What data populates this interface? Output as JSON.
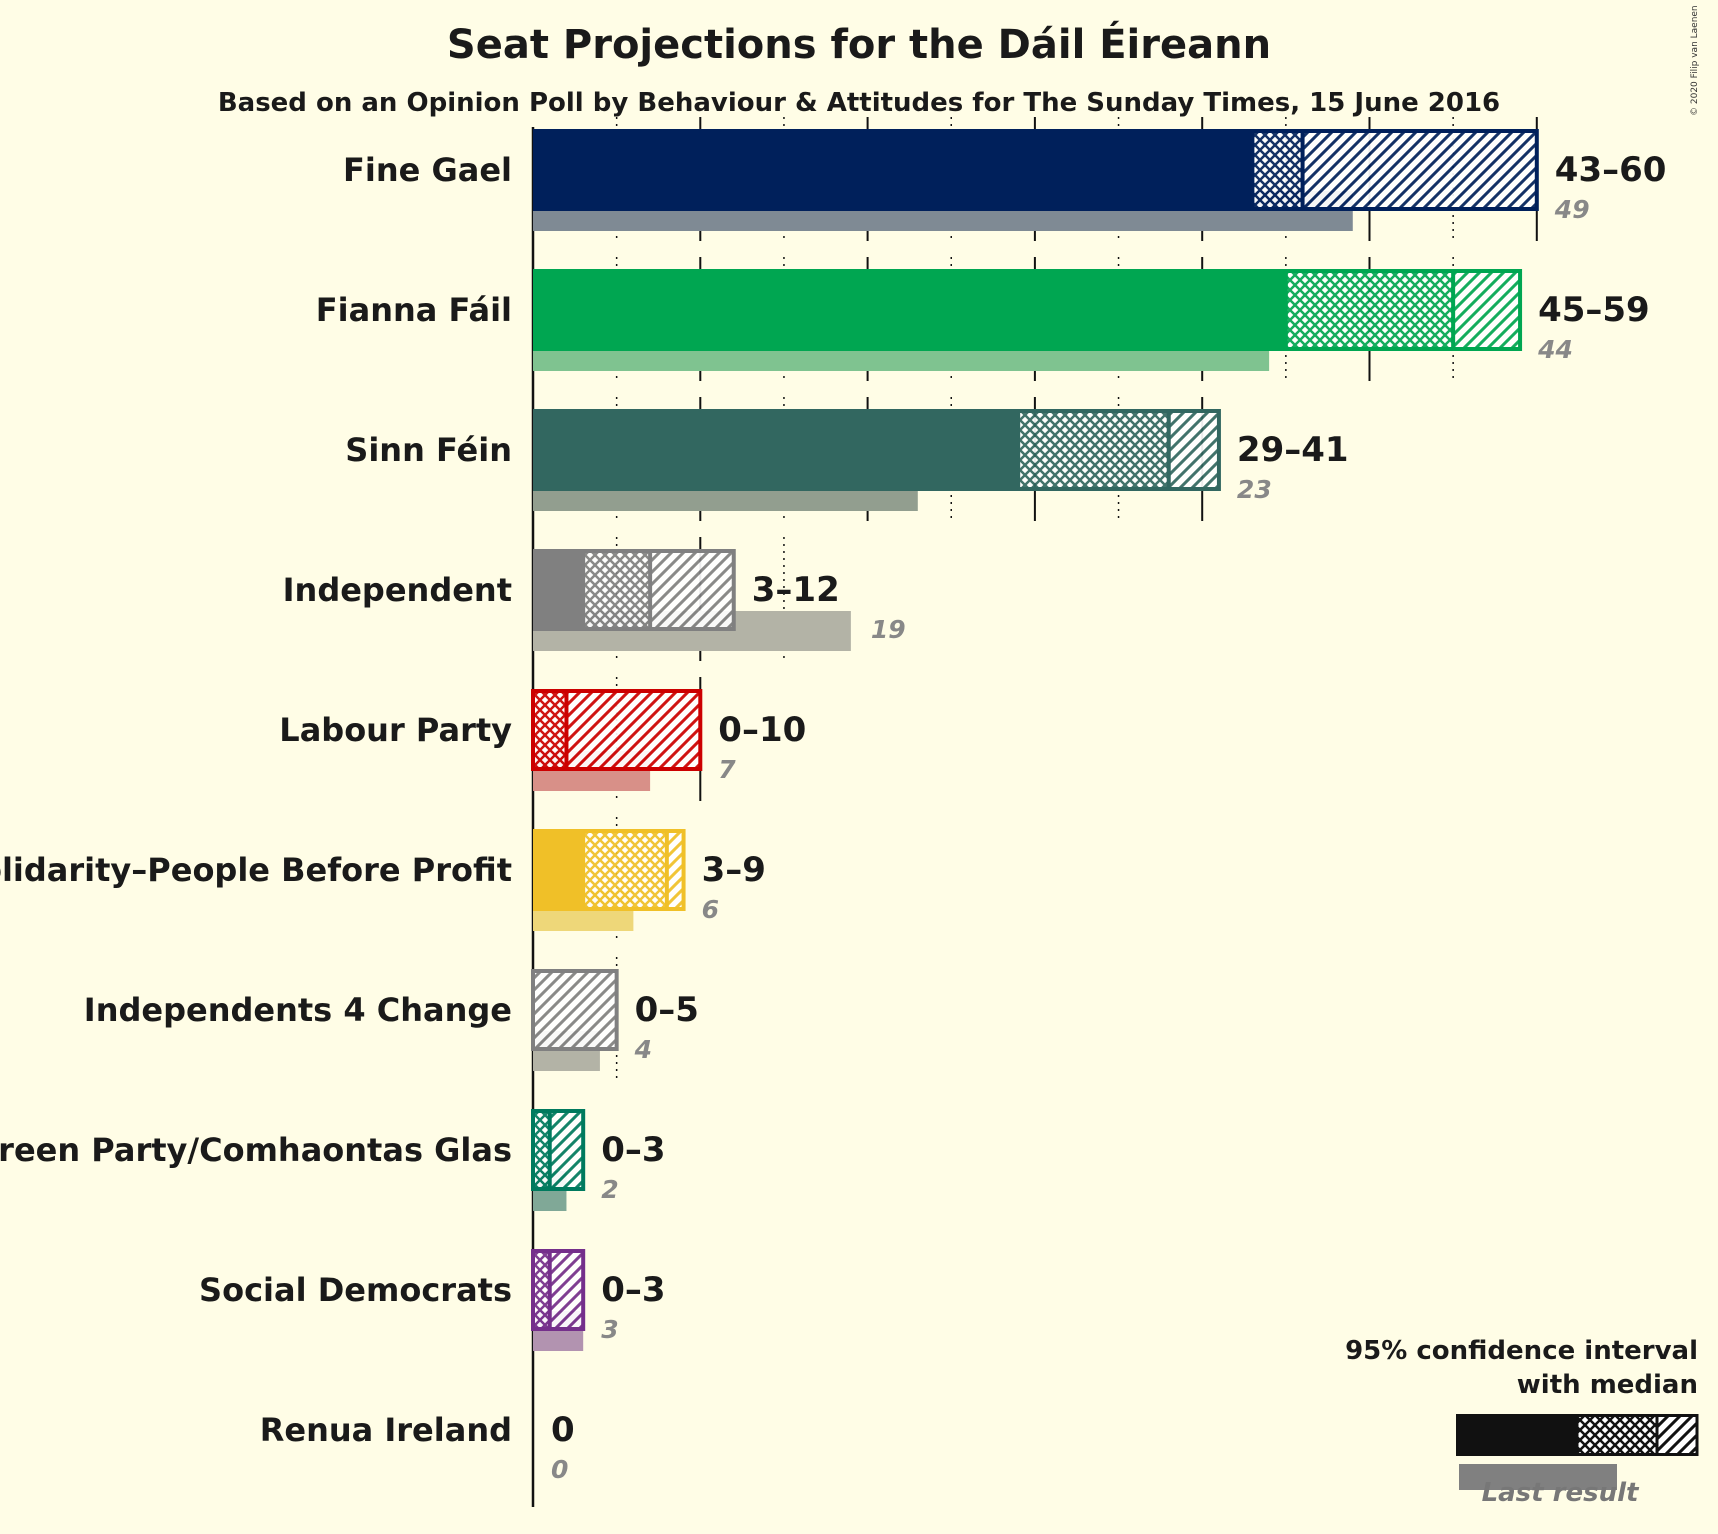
{
  "title": "Seat Projections for the Dáil Éireann",
  "subtitle": "Based on an Opinion Poll by Behaviour & Attitudes for The Sunday Times, 15 June 2016",
  "copyright": "© 2020 Filip van Laenen",
  "legend": {
    "title_line1": "95% confidence interval",
    "title_line2": "with median",
    "last_result": "Last result"
  },
  "chart_data": {
    "type": "bar",
    "orientation": "horizontal",
    "title": "Seat Projections for the Dáil Éireann",
    "subtitle": "Based on an Opinion Poll by Behaviour & Attitudes for The Sunday Times, 15 June 2016",
    "xlim": [
      0,
      60
    ],
    "gridlines_every": 5,
    "legend_position": "bottom-right",
    "parties": [
      {
        "name": "Fine Gael",
        "color": "#00205b",
        "last_color": "#7f8a94",
        "low": 43,
        "median": 46,
        "high": 60,
        "range_label": "43–60",
        "last": 49,
        "last_label": "49"
      },
      {
        "name": "Fianna Fáil",
        "color": "#00a651",
        "last_color": "#7fc390",
        "low": 45,
        "median": 55,
        "high": 59,
        "range_label": "45–59",
        "last": 44,
        "last_label": "44"
      },
      {
        "name": "Sinn Féin",
        "color": "#326760",
        "last_color": "#929e8f",
        "low": 29,
        "median": 38,
        "high": 41,
        "range_label": "29–41",
        "last": 23,
        "last_label": "23"
      },
      {
        "name": "Independent",
        "color": "#808080",
        "last_color": "#b3b3a6",
        "low": 3,
        "median": 7,
        "high": 12,
        "range_label": "3–12",
        "last": 19,
        "last_label": "19"
      },
      {
        "name": "Labour Party",
        "color": "#cc0000",
        "last_color": "#d89088",
        "low": 0,
        "median": 2,
        "high": 10,
        "range_label": "0–10",
        "last": 7,
        "last_label": "7"
      },
      {
        "name": "Solidarity–People Before Profit",
        "color": "#f0c028",
        "last_color": "#eed779",
        "low": 3,
        "median": 8,
        "high": 9,
        "range_label": "3–9",
        "last": 6,
        "last_label": "6"
      },
      {
        "name": "Independents 4 Change",
        "color": "#808080",
        "last_color": "#b3b3a6",
        "low": 0,
        "median": 0,
        "high": 5,
        "range_label": "0–5",
        "last": 4,
        "last_label": "4"
      },
      {
        "name": "Green Party/Comhaontas Glas",
        "color": "#007a5e",
        "last_color": "#80a897",
        "low": 0,
        "median": 1,
        "high": 3,
        "range_label": "0–3",
        "last": 2,
        "last_label": "2"
      },
      {
        "name": "Social Democrats",
        "color": "#752f8b",
        "last_color": "#b293b0",
        "low": 0,
        "median": 1,
        "high": 3,
        "range_label": "0–3",
        "last": 3,
        "last_label": "3"
      },
      {
        "name": "Renua Ireland",
        "color": "#808080",
        "last_color": "#b3b3a6",
        "low": 0,
        "median": 0,
        "high": 0,
        "range_label": "0",
        "last": 0,
        "last_label": "0"
      }
    ]
  }
}
